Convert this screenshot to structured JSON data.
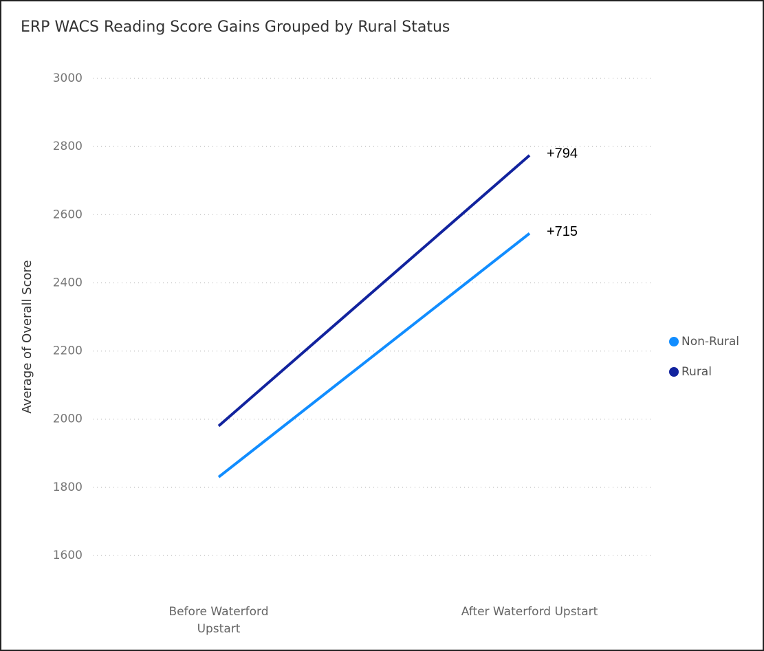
{
  "chart_data": {
    "type": "line",
    "title": "ERP WACS Reading Score Gains Grouped by Rural Status",
    "y_label": "Average of Overall Score",
    "categories": [
      "Before Waterford Upstart",
      "After Waterford Upstart"
    ],
    "series": [
      {
        "name": "Non-Rural",
        "color": "#118dff",
        "values": [
          1830,
          2545
        ]
      },
      {
        "name": "Rural",
        "color": "#12239e",
        "values": [
          1980,
          2774
        ]
      }
    ],
    "annotations": [
      {
        "series": 1,
        "text": "+794"
      },
      {
        "series": 0,
        "text": "+715"
      }
    ],
    "ylim": [
      1600,
      3000
    ],
    "yticks": [
      1600,
      1800,
      2000,
      2200,
      2400,
      2600,
      2800,
      3000
    ],
    "grid": true,
    "legend": "right"
  }
}
